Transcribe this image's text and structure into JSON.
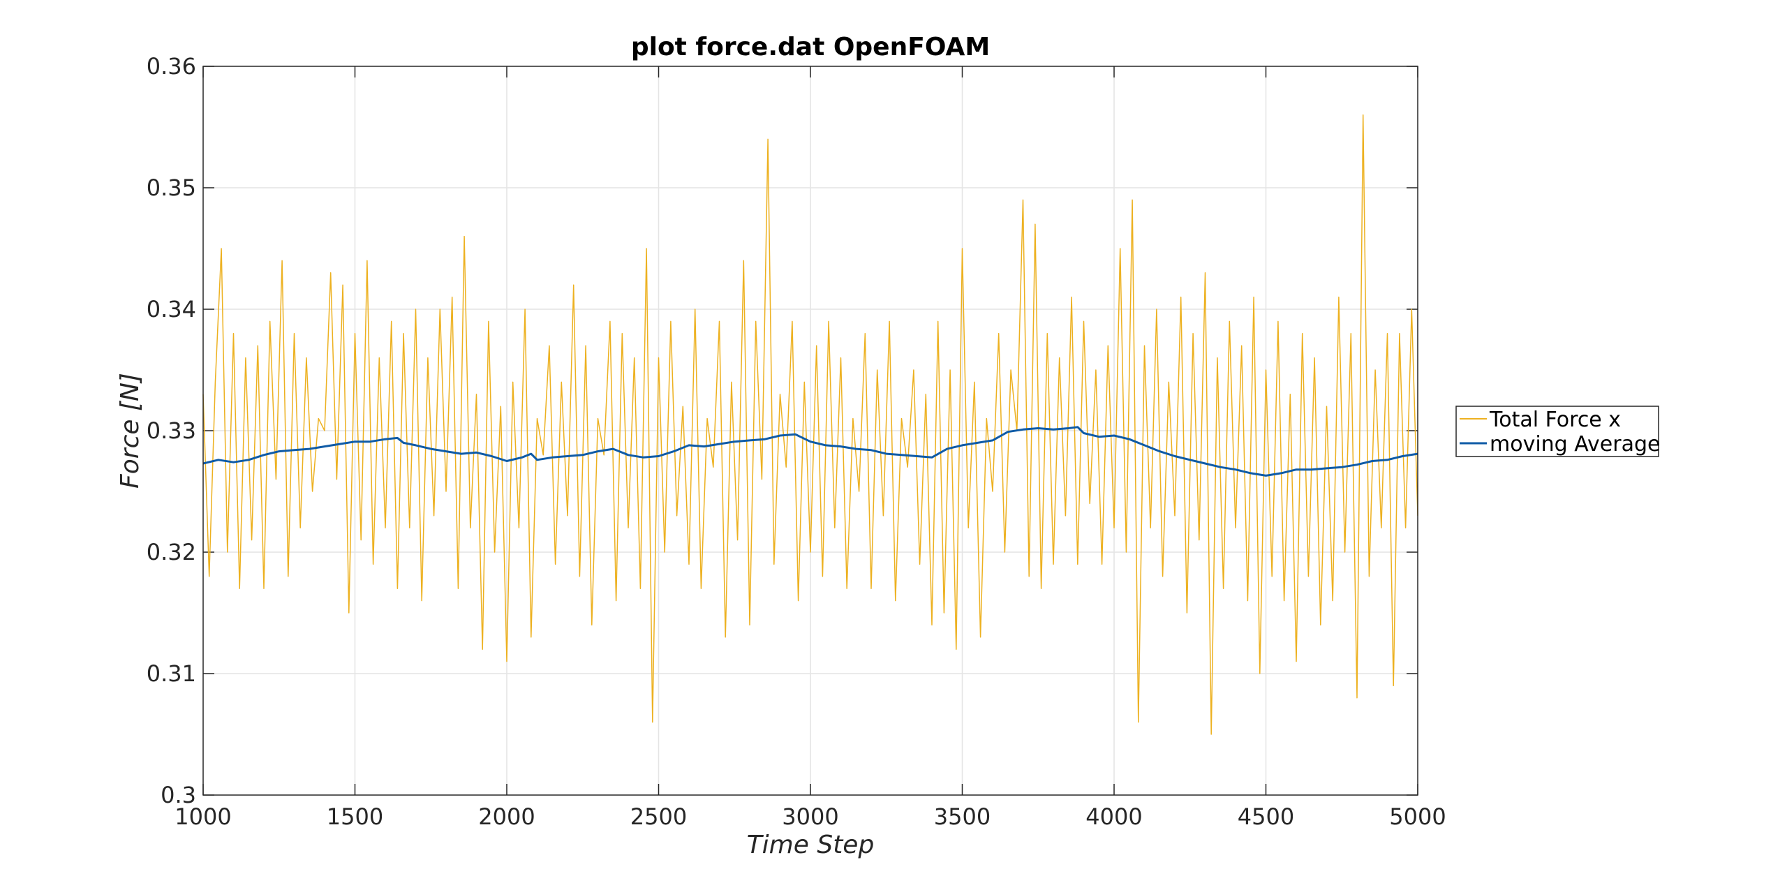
{
  "chart_data": {
    "type": "line",
    "title": "plot force.dat OpenFOAM",
    "xlabel": "Time Step",
    "ylabel": "Force [N]",
    "xlim": [
      1000,
      5000
    ],
    "ylim": [
      0.3,
      0.36
    ],
    "x_ticks": [
      1000,
      1500,
      2000,
      2500,
      3000,
      3500,
      4000,
      4500,
      5000
    ],
    "x_tick_labels": [
      "1000",
      "1500",
      "2000",
      "2500",
      "3000",
      "3500",
      "4000",
      "4500",
      "5000"
    ],
    "y_ticks": [
      0.3,
      0.31,
      0.32,
      0.33,
      0.34,
      0.35,
      0.36
    ],
    "y_tick_labels": [
      "0.3",
      "0.31",
      "0.32",
      "0.33",
      "0.34",
      "0.35",
      "0.36"
    ],
    "grid": true,
    "legend_position": "outside-right",
    "series": [
      {
        "name": "Total Force x",
        "color": "#EDB120",
        "x": [
          1000,
          1020,
          1040,
          1060,
          1080,
          1100,
          1120,
          1140,
          1160,
          1180,
          1200,
          1220,
          1240,
          1260,
          1280,
          1300,
          1320,
          1340,
          1360,
          1380,
          1400,
          1420,
          1440,
          1460,
          1480,
          1500,
          1520,
          1540,
          1560,
          1580,
          1600,
          1620,
          1640,
          1660,
          1680,
          1700,
          1720,
          1740,
          1760,
          1780,
          1800,
          1820,
          1840,
          1860,
          1880,
          1900,
          1920,
          1940,
          1960,
          1980,
          2000,
          2020,
          2040,
          2060,
          2080,
          2100,
          2120,
          2140,
          2160,
          2180,
          2200,
          2220,
          2240,
          2260,
          2280,
          2300,
          2320,
          2340,
          2360,
          2380,
          2400,
          2420,
          2440,
          2460,
          2480,
          2500,
          2520,
          2540,
          2560,
          2580,
          2600,
          2620,
          2640,
          2660,
          2680,
          2700,
          2720,
          2740,
          2760,
          2780,
          2800,
          2820,
          2840,
          2860,
          2880,
          2900,
          2920,
          2940,
          2960,
          2980,
          3000,
          3020,
          3040,
          3060,
          3080,
          3100,
          3120,
          3140,
          3160,
          3180,
          3200,
          3220,
          3240,
          3260,
          3280,
          3300,
          3320,
          3340,
          3360,
          3380,
          3400,
          3420,
          3440,
          3460,
          3480,
          3500,
          3520,
          3540,
          3560,
          3580,
          3600,
          3620,
          3640,
          3660,
          3680,
          3700,
          3720,
          3740,
          3760,
          3780,
          3800,
          3820,
          3840,
          3860,
          3880,
          3900,
          3920,
          3940,
          3960,
          3980,
          4000,
          4020,
          4040,
          4060,
          4080,
          4100,
          4120,
          4140,
          4160,
          4180,
          4200,
          4220,
          4240,
          4260,
          4280,
          4300,
          4320,
          4340,
          4360,
          4380,
          4400,
          4420,
          4440,
          4460,
          4480,
          4500,
          4520,
          4540,
          4560,
          4580,
          4600,
          4620,
          4640,
          4660,
          4680,
          4700,
          4720,
          4740,
          4760,
          4780,
          4800,
          4820,
          4840,
          4860,
          4880,
          4900,
          4920,
          4940,
          4960,
          4980,
          5000
        ],
        "y": [
          0.333,
          0.318,
          0.334,
          0.345,
          0.32,
          0.338,
          0.317,
          0.336,
          0.321,
          0.337,
          0.317,
          0.339,
          0.326,
          0.344,
          0.318,
          0.338,
          0.322,
          0.336,
          0.325,
          0.331,
          0.33,
          0.343,
          0.326,
          0.342,
          0.315,
          0.338,
          0.321,
          0.344,
          0.319,
          0.336,
          0.322,
          0.339,
          0.317,
          0.338,
          0.322,
          0.34,
          0.316,
          0.336,
          0.323,
          0.34,
          0.325,
          0.341,
          0.317,
          0.346,
          0.322,
          0.333,
          0.312,
          0.339,
          0.32,
          0.332,
          0.311,
          0.334,
          0.322,
          0.34,
          0.313,
          0.331,
          0.328,
          0.337,
          0.319,
          0.334,
          0.323,
          0.342,
          0.318,
          0.337,
          0.314,
          0.331,
          0.328,
          0.339,
          0.316,
          0.338,
          0.322,
          0.336,
          0.317,
          0.345,
          0.306,
          0.336,
          0.32,
          0.339,
          0.323,
          0.332,
          0.319,
          0.34,
          0.317,
          0.331,
          0.327,
          0.339,
          0.313,
          0.334,
          0.321,
          0.344,
          0.314,
          0.339,
          0.326,
          0.354,
          0.319,
          0.333,
          0.327,
          0.339,
          0.316,
          0.334,
          0.32,
          0.337,
          0.318,
          0.339,
          0.322,
          0.336,
          0.317,
          0.331,
          0.325,
          0.338,
          0.317,
          0.335,
          0.323,
          0.339,
          0.316,
          0.331,
          0.327,
          0.335,
          0.319,
          0.333,
          0.314,
          0.339,
          0.315,
          0.335,
          0.312,
          0.345,
          0.322,
          0.334,
          0.313,
          0.331,
          0.325,
          0.338,
          0.32,
          0.335,
          0.33,
          0.349,
          0.318,
          0.347,
          0.317,
          0.338,
          0.319,
          0.336,
          0.323,
          0.341,
          0.319,
          0.339,
          0.324,
          0.335,
          0.319,
          0.337,
          0.322,
          0.345,
          0.32,
          0.349,
          0.306,
          0.337,
          0.322,
          0.34,
          0.318,
          0.334,
          0.323,
          0.341,
          0.315,
          0.338,
          0.321,
          0.343,
          0.305,
          0.336,
          0.317,
          0.339,
          0.322,
          0.337,
          0.316,
          0.341,
          0.31,
          0.335,
          0.318,
          0.339,
          0.316,
          0.333,
          0.311,
          0.338,
          0.318,
          0.336,
          0.314,
          0.332,
          0.316,
          0.341,
          0.32,
          0.338,
          0.308,
          0.356,
          0.318,
          0.335,
          0.322,
          0.338,
          0.309,
          0.338,
          0.322,
          0.34,
          0.323
        ]
      },
      {
        "name": "moving Average",
        "color": "#0F5BA6",
        "x": [
          1000,
          1050,
          1100,
          1150,
          1200,
          1250,
          1300,
          1350,
          1400,
          1450,
          1500,
          1550,
          1600,
          1640,
          1660,
          1700,
          1750,
          1800,
          1850,
          1900,
          1950,
          2000,
          2050,
          2080,
          2100,
          2150,
          2200,
          2250,
          2300,
          2350,
          2400,
          2450,
          2500,
          2550,
          2600,
          2650,
          2700,
          2750,
          2800,
          2850,
          2900,
          2950,
          3000,
          3050,
          3100,
          3150,
          3200,
          3250,
          3300,
          3350,
          3400,
          3450,
          3500,
          3550,
          3600,
          3650,
          3700,
          3750,
          3800,
          3850,
          3880,
          3900,
          3950,
          4000,
          4050,
          4100,
          4150,
          4200,
          4250,
          4300,
          4350,
          4400,
          4450,
          4500,
          4550,
          4600,
          4650,
          4700,
          4750,
          4800,
          4850,
          4900,
          4950,
          5000
        ],
        "y": [
          0.3273,
          0.3276,
          0.3274,
          0.3276,
          0.328,
          0.3283,
          0.3284,
          0.3285,
          0.3287,
          0.3289,
          0.3291,
          0.3291,
          0.3293,
          0.3294,
          0.329,
          0.3288,
          0.3285,
          0.3283,
          0.3281,
          0.3282,
          0.3279,
          0.3275,
          0.3278,
          0.3281,
          0.3276,
          0.3278,
          0.3279,
          0.328,
          0.3283,
          0.3285,
          0.328,
          0.3278,
          0.3279,
          0.3283,
          0.3288,
          0.3287,
          0.3289,
          0.3291,
          0.3292,
          0.3293,
          0.3296,
          0.3297,
          0.3291,
          0.3288,
          0.3287,
          0.3285,
          0.3284,
          0.3281,
          0.328,
          0.3279,
          0.3278,
          0.3285,
          0.3288,
          0.329,
          0.3292,
          0.3299,
          0.3301,
          0.3302,
          0.3301,
          0.3302,
          0.3303,
          0.3298,
          0.3295,
          0.3296,
          0.3293,
          0.3288,
          0.3283,
          0.3279,
          0.3276,
          0.3273,
          0.327,
          0.3268,
          0.3265,
          0.3263,
          0.3265,
          0.3268,
          0.3268,
          0.3269,
          0.327,
          0.3272,
          0.3275,
          0.3276,
          0.3279,
          0.3281
        ]
      }
    ]
  }
}
